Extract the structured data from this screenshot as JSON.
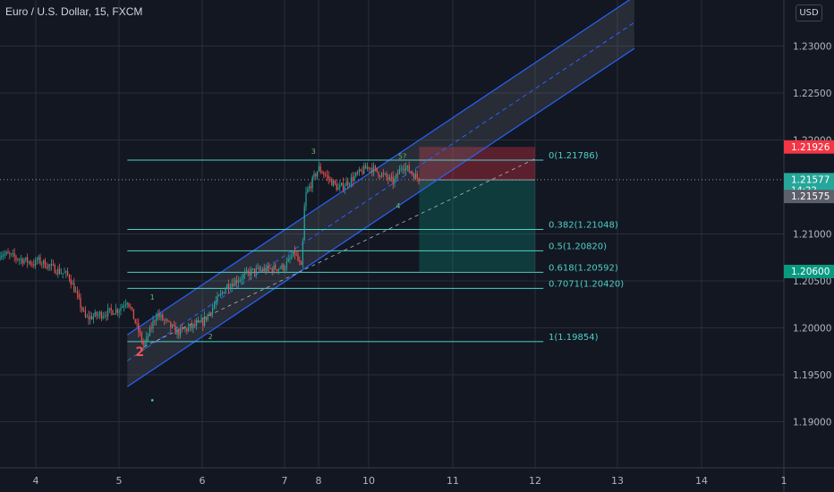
{
  "title": "Euro / U.S. Dollar, 15, FXCM",
  "currency": "USD",
  "colors": {
    "background": "#131722",
    "grid": "#2a2e39",
    "up": "#26a69a",
    "down": "#ef5350",
    "channel": "#2962ff",
    "fib": "#4dd0c8",
    "stop_zone": "#f23645",
    "target_zone": "#089981"
  },
  "chart_data": {
    "type": "candlestick",
    "ylim": [
      1.1851,
      1.2349
    ],
    "y_ticks": [
      "1.23000",
      "1.22500",
      "1.22000",
      "1.21000",
      "1.20500",
      "1.20000",
      "1.19500",
      "1.19000"
    ],
    "x_ticks": [
      "4",
      "5",
      "6",
      "7",
      "8",
      "10",
      "11",
      "12",
      "13",
      "14",
      "1"
    ],
    "approx_price_path": [
      [
        "4",
        1.2073
      ],
      [
        "4.4",
        1.2055
      ],
      [
        "4.6",
        1.201
      ],
      [
        "5",
        1.202
      ],
      [
        "5.1",
        1.203
      ],
      [
        "5.3",
        1.198
      ],
      [
        "5.45",
        1.2015
      ],
      [
        "5.7",
        1.1995
      ],
      [
        "6",
        1.2005
      ],
      [
        "6.3",
        1.2045
      ],
      [
        "6.6",
        1.206
      ],
      [
        "7",
        1.2065
      ],
      [
        "7.3",
        1.208
      ],
      [
        "7.5",
        1.2062
      ],
      [
        "7.6",
        1.214
      ],
      [
        "8",
        1.217
      ],
      [
        "8.4",
        1.2148
      ],
      [
        "10",
        1.2172
      ],
      [
        "10.3",
        1.2155
      ],
      [
        "10.4",
        1.2174
      ],
      [
        "10.6",
        1.2158
      ]
    ],
    "fibonacci": [
      {
        "level": "0",
        "price": 1.21786,
        "label": "0(1.21786)"
      },
      {
        "level": "0.382",
        "price": 1.21048,
        "label": "0.382(1.21048)"
      },
      {
        "level": "0.5",
        "price": 1.2082,
        "label": "0.5(1.20820)"
      },
      {
        "level": "0.618",
        "price": 1.20592,
        "label": "0.618(1.20592)"
      },
      {
        "level": "0.7071",
        "price": 1.2042,
        "label": "0.7071(1.20420)"
      },
      {
        "level": "1",
        "price": 1.19854,
        "label": "1(1.19854)"
      }
    ],
    "position": {
      "stop": 1.21926,
      "entry": 1.21575,
      "target": 1.206
    },
    "price_labels": [
      {
        "kind": "stop",
        "text": "1.21926",
        "price": 1.21926
      },
      {
        "kind": "last",
        "text": "1.21577",
        "sub": "14:22",
        "price": 1.21577
      },
      {
        "kind": "entry",
        "text": "1.21575",
        "price": 1.21575
      },
      {
        "kind": "target",
        "text": "1.20600",
        "price": 1.206
      }
    ],
    "wave_labels": [
      {
        "text": "1",
        "x": "5.4",
        "price": 1.203
      },
      {
        "text": "2",
        "x": "5.25",
        "price": 1.197,
        "big": true
      },
      {
        "text": "2",
        "x": "6.1",
        "price": 1.1988
      },
      {
        "text": "3",
        "x": "7.85",
        "price": 1.2185
      },
      {
        "text": "4",
        "x": "10.35",
        "price": 1.2127
      },
      {
        "text": "5?",
        "x": "10.4",
        "price": 1.218
      }
    ]
  }
}
